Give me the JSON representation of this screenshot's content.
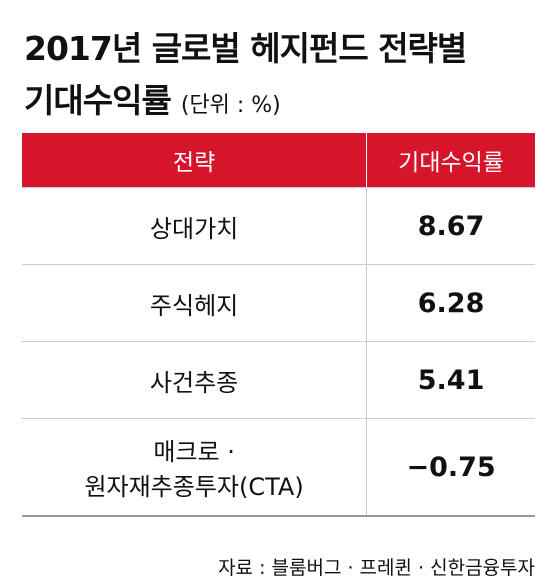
{
  "header": {
    "title_line1": "2017년 글로벌 헤지펀드 전략별",
    "title_line2": "기대수익률",
    "unit": "(단위 : %)"
  },
  "table": {
    "columns": [
      "전략",
      "기대수익률"
    ],
    "rows": [
      [
        [
          "상대가치"
        ],
        "8.67"
      ],
      [
        [
          "주식헤지"
        ],
        "6.28"
      ],
      [
        [
          "사건추종"
        ],
        "5.41"
      ],
      [
        [
          "매크로 ·",
          "원자재추종투자(CTA)"
        ],
        "−0.75"
      ]
    ]
  },
  "footer": {
    "source": "자료 : 블룸버그 · 프레퀸 · 신한금융투자"
  }
}
